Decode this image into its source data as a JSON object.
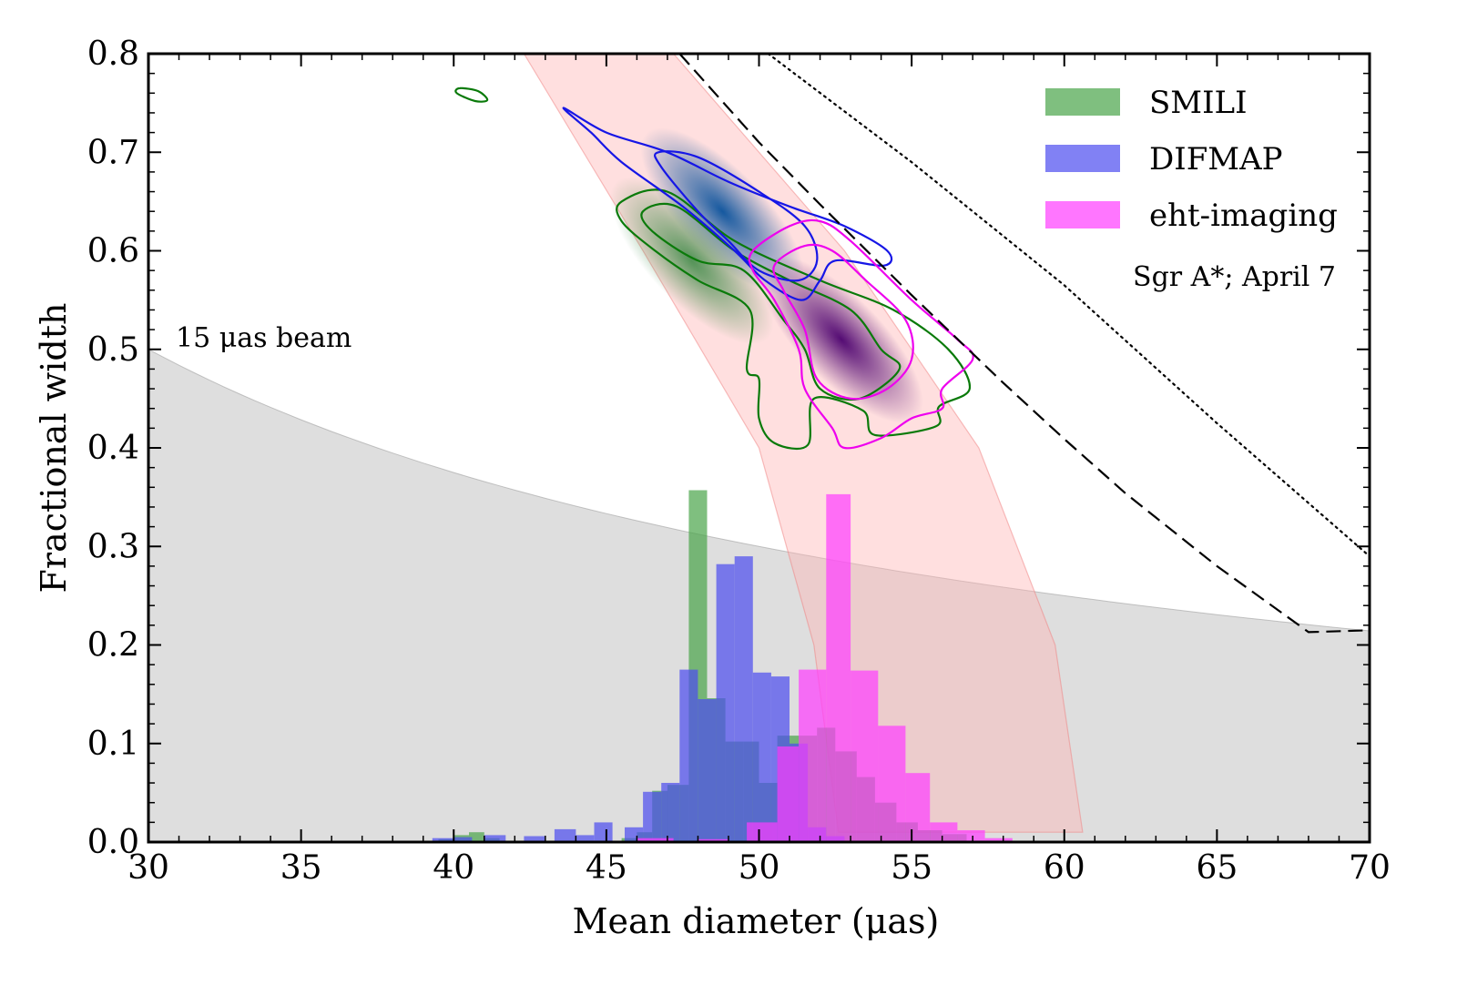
{
  "chart_data": {
    "type": "contour+histogram",
    "title": "",
    "xlabel": "Mean diameter (μas)",
    "ylabel": "Fractional width",
    "xlim": [
      30,
      70
    ],
    "ylim": [
      0,
      0.8
    ],
    "xticks": [
      30,
      35,
      40,
      45,
      50,
      55,
      60,
      65,
      70
    ],
    "yticks": [
      0.0,
      0.1,
      0.2,
      0.3,
      0.4,
      0.5,
      0.6,
      0.7,
      0.8
    ],
    "xtick_labels": [
      "30",
      "35",
      "40",
      "45",
      "50",
      "55",
      "60",
      "65",
      "70"
    ],
    "ytick_labels": [
      "0.0",
      "0.1",
      "0.2",
      "0.3",
      "0.4",
      "0.5",
      "0.6",
      "0.7",
      "0.8"
    ],
    "legend": [
      {
        "label": "SMILI",
        "color": "#48a448"
      },
      {
        "label": "DIFMAP",
        "color": "#4b4bf0"
      },
      {
        "label": "eht-imaging",
        "color": "#ff3cff"
      }
    ],
    "annotations": {
      "beam": "15 μas beam",
      "source": "Sgr A*; April 7"
    },
    "beam_region": {
      "description": "shaded region below fractional width = 15/diameter",
      "x": [
        30,
        35,
        40,
        45,
        50,
        55,
        60,
        65,
        70
      ],
      "y_top": [
        0.5,
        0.429,
        0.375,
        0.333,
        0.3,
        0.273,
        0.25,
        0.231,
        0.214
      ],
      "color": "#bdbdbd"
    },
    "pink_band": {
      "color": "#ffb3b3",
      "x_left": [
        42.3,
        46.2,
        50.0,
        51.8,
        52.6
      ],
      "x_right": [
        47.2,
        52.8,
        57.2,
        59.7,
        60.6
      ],
      "y": [
        0.8,
        0.6,
        0.4,
        0.2,
        0.01
      ]
    },
    "curves": [
      {
        "name": "dashed",
        "style": "dashed",
        "x": [
          47.4,
          50,
          52,
          55,
          58,
          60,
          62,
          65,
          68,
          70
        ],
        "y": [
          0.8,
          0.71,
          0.647,
          0.555,
          0.466,
          0.409,
          0.354,
          0.28,
          0.213,
          0.215
        ]
      },
      {
        "name": "dotted",
        "style": "dotted",
        "x": [
          50.3,
          55,
          60,
          65,
          70
        ],
        "y": [
          0.8,
          0.69,
          0.565,
          0.425,
          0.29
        ]
      }
    ],
    "series": [
      {
        "name": "SMILI",
        "color": "#48a448",
        "contour_color": "#0a7a0a",
        "hist_bins": [
          {
            "x0": 39.5,
            "x1": 40.0,
            "h": 0.003
          },
          {
            "x0": 40.0,
            "x1": 40.5,
            "h": 0.007
          },
          {
            "x0": 40.5,
            "x1": 41.0,
            "h": 0.01
          },
          {
            "x0": 41.0,
            "x1": 41.5,
            "h": 0.004
          },
          {
            "x0": 45.5,
            "x1": 46.0,
            "h": 0.004
          },
          {
            "x0": 46.0,
            "x1": 46.5,
            "h": 0.01
          },
          {
            "x0": 46.5,
            "x1": 47.0,
            "h": 0.052
          },
          {
            "x0": 47.0,
            "x1": 47.7,
            "h": 0.058
          },
          {
            "x0": 47.7,
            "x1": 48.3,
            "h": 0.357
          },
          {
            "x0": 48.3,
            "x1": 48.9,
            "h": 0.146
          },
          {
            "x0": 48.9,
            "x1": 49.5,
            "h": 0.102
          },
          {
            "x0": 49.5,
            "x1": 50.0,
            "h": 0.102
          },
          {
            "x0": 50.0,
            "x1": 50.6,
            "h": 0.06
          },
          {
            "x0": 50.6,
            "x1": 51.3,
            "h": 0.108
          },
          {
            "x0": 51.3,
            "x1": 51.9,
            "h": 0.108
          },
          {
            "x0": 51.9,
            "x1": 52.5,
            "h": 0.116
          },
          {
            "x0": 52.5,
            "x1": 53.2,
            "h": 0.092
          },
          {
            "x0": 53.2,
            "x1": 53.8,
            "h": 0.066
          },
          {
            "x0": 53.8,
            "x1": 54.5,
            "h": 0.04
          },
          {
            "x0": 54.5,
            "x1": 55.2,
            "h": 0.02
          },
          {
            "x0": 55.2,
            "x1": 56.0,
            "h": 0.012
          },
          {
            "x0": 56.0,
            "x1": 56.8,
            "h": 0.008
          }
        ],
        "contours": [
          [
            [
              45.5,
              0.65
            ],
            [
              47.0,
              0.66
            ],
            [
              49.2,
              0.61
            ],
            [
              52.0,
              0.57
            ],
            [
              54.4,
              0.54
            ],
            [
              56.2,
              0.5
            ],
            [
              56.9,
              0.46
            ],
            [
              55.9,
              0.442
            ],
            [
              55.8,
              0.422
            ],
            [
              53.8,
              0.413
            ],
            [
              53.4,
              0.438
            ],
            [
              51.8,
              0.45
            ],
            [
              51.6,
              0.403
            ],
            [
              50.5,
              0.405
            ],
            [
              50.0,
              0.43
            ],
            [
              50.0,
              0.47
            ],
            [
              49.6,
              0.48
            ],
            [
              49.7,
              0.54
            ],
            [
              48.0,
              0.57
            ],
            [
              46.6,
              0.6
            ],
            [
              45.5,
              0.63
            ]
          ],
          [
            [
              46.2,
              0.64
            ],
            [
              47.3,
              0.645
            ],
            [
              49.2,
              0.6
            ],
            [
              51.0,
              0.57
            ],
            [
              53.0,
              0.54
            ],
            [
              54.0,
              0.5
            ],
            [
              54.6,
              0.48
            ],
            [
              53.3,
              0.45
            ],
            [
              52.0,
              0.46
            ],
            [
              51.5,
              0.5
            ],
            [
              50.8,
              0.53
            ],
            [
              49.5,
              0.58
            ],
            [
              48.0,
              0.59
            ],
            [
              46.5,
              0.62
            ]
          ]
        ]
      },
      {
        "name": "DIFMAP",
        "color": "#4b4bf0",
        "contour_color": "#1616e6",
        "hist_bins": [
          {
            "x0": 39.3,
            "x1": 40.0,
            "h": 0.004
          },
          {
            "x0": 40.0,
            "x1": 40.6,
            "h": 0.005
          },
          {
            "x0": 41.0,
            "x1": 41.7,
            "h": 0.007
          },
          {
            "x0": 42.3,
            "x1": 43.0,
            "h": 0.006
          },
          {
            "x0": 43.3,
            "x1": 44.0,
            "h": 0.013
          },
          {
            "x0": 44.0,
            "x1": 44.6,
            "h": 0.007
          },
          {
            "x0": 44.6,
            "x1": 45.2,
            "h": 0.02
          },
          {
            "x0": 45.6,
            "x1": 46.2,
            "h": 0.015
          },
          {
            "x0": 46.2,
            "x1": 46.8,
            "h": 0.051
          },
          {
            "x0": 46.8,
            "x1": 47.4,
            "h": 0.06
          },
          {
            "x0": 47.4,
            "x1": 48.0,
            "h": 0.175
          },
          {
            "x0": 48.0,
            "x1": 48.6,
            "h": 0.145
          },
          {
            "x0": 48.6,
            "x1": 49.2,
            "h": 0.282
          },
          {
            "x0": 49.2,
            "x1": 49.8,
            "h": 0.29
          },
          {
            "x0": 49.8,
            "x1": 50.4,
            "h": 0.172
          },
          {
            "x0": 50.4,
            "x1": 51.0,
            "h": 0.168
          },
          {
            "x0": 51.0,
            "x1": 51.6,
            "h": 0.1
          },
          {
            "x0": 51.6,
            "x1": 52.2,
            "h": 0.015
          },
          {
            "x0": 52.2,
            "x1": 52.8,
            "h": 0.006
          }
        ],
        "contours": [
          [
            [
              43.6,
              0.745
            ],
            [
              45.0,
              0.72
            ],
            [
              47.0,
              0.7
            ],
            [
              49.0,
              0.67
            ],
            [
              51.0,
              0.645
            ],
            [
              52.8,
              0.625
            ],
            [
              54.2,
              0.6
            ],
            [
              54.1,
              0.585
            ],
            [
              52.5,
              0.59
            ],
            [
              52.0,
              0.57
            ],
            [
              51.4,
              0.55
            ],
            [
              50.2,
              0.57
            ],
            [
              49.2,
              0.6
            ],
            [
              47.5,
              0.645
            ],
            [
              45.5,
              0.69
            ],
            [
              44.5,
              0.72
            ]
          ],
          [
            [
              46.7,
              0.7
            ],
            [
              48.0,
              0.695
            ],
            [
              50.0,
              0.66
            ],
            [
              51.5,
              0.625
            ],
            [
              51.9,
              0.59
            ],
            [
              51.3,
              0.57
            ],
            [
              50.0,
              0.58
            ],
            [
              49.0,
              0.61
            ],
            [
              48.0,
              0.64
            ],
            [
              46.8,
              0.685
            ]
          ]
        ]
      },
      {
        "name": "eht-imaging",
        "color": "#ff3cff",
        "contour_color": "#ee00ee",
        "hist_bins": [
          {
            "x0": 46.0,
            "x1": 47.2,
            "h": 0.004
          },
          {
            "x0": 48.0,
            "x1": 49.0,
            "h": 0.003
          },
          {
            "x0": 49.6,
            "x1": 50.6,
            "h": 0.02
          },
          {
            "x0": 50.6,
            "x1": 51.3,
            "h": 0.097
          },
          {
            "x0": 51.3,
            "x1": 52.2,
            "h": 0.175
          },
          {
            "x0": 52.2,
            "x1": 53.0,
            "h": 0.353
          },
          {
            "x0": 53.0,
            "x1": 53.9,
            "h": 0.174
          },
          {
            "x0": 53.9,
            "x1": 54.8,
            "h": 0.118
          },
          {
            "x0": 54.8,
            "x1": 55.6,
            "h": 0.07
          },
          {
            "x0": 55.6,
            "x1": 56.5,
            "h": 0.02
          },
          {
            "x0": 56.5,
            "x1": 57.4,
            "h": 0.012
          },
          {
            "x0": 57.4,
            "x1": 58.3,
            "h": 0.004
          }
        ],
        "contours": [
          [
            [
              49.8,
              0.6
            ],
            [
              51.0,
              0.625
            ],
            [
              52.0,
              0.63
            ],
            [
              53.0,
              0.61
            ],
            [
              55.0,
              0.55
            ],
            [
              56.5,
              0.51
            ],
            [
              57.0,
              0.49
            ],
            [
              56.0,
              0.46
            ],
            [
              56.0,
              0.44
            ],
            [
              55.0,
              0.43
            ],
            [
              54.0,
              0.41
            ],
            [
              52.8,
              0.4
            ],
            [
              52.4,
              0.42
            ],
            [
              51.5,
              0.46
            ],
            [
              51.3,
              0.5
            ],
            [
              50.5,
              0.55
            ],
            [
              49.8,
              0.58
            ]
          ],
          [
            [
              50.5,
              0.585
            ],
            [
              51.5,
              0.605
            ],
            [
              52.4,
              0.6
            ],
            [
              53.5,
              0.57
            ],
            [
              54.8,
              0.53
            ],
            [
              55.0,
              0.49
            ],
            [
              54.2,
              0.46
            ],
            [
              53.0,
              0.45
            ],
            [
              51.9,
              0.47
            ],
            [
              51.5,
              0.52
            ],
            [
              50.8,
              0.56
            ]
          ]
        ]
      }
    ],
    "density_peaks": [
      {
        "series": "DIFMAP",
        "x": 48.8,
        "y": 0.64,
        "color": "#08519c"
      },
      {
        "series": "eht-imaging",
        "x": 52.7,
        "y": 0.51,
        "color": "#4b006e"
      },
      {
        "series": "SMILI",
        "x": 47.8,
        "y": 0.59,
        "color": "#1a7a2a"
      }
    ],
    "extra_contour": {
      "series": "SMILI",
      "points": [
        [
          40.2,
          0.765
        ],
        [
          40.8,
          0.762
        ],
        [
          41.1,
          0.753
        ],
        [
          40.7,
          0.752
        ],
        [
          40.1,
          0.76
        ]
      ]
    }
  }
}
